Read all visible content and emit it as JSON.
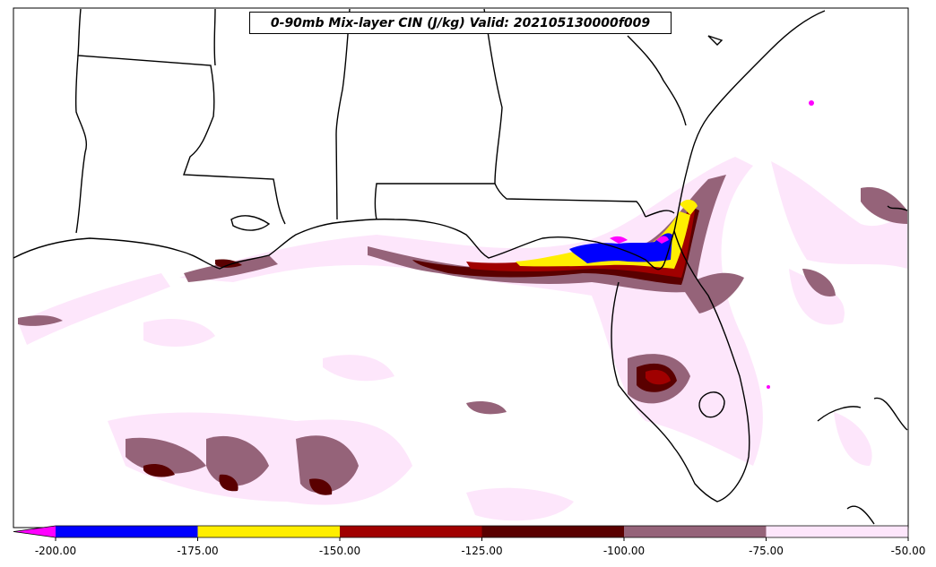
{
  "title": "0-90mb Mix-layer CIN (J/kg) Valid: 202105130000f009",
  "colorbar": {
    "ticks": [
      "-200.00",
      "-175.00",
      "-150.00",
      "-125.00",
      "-100.00",
      "-75.00",
      "-50.00"
    ],
    "bins": [
      {
        "from": -225,
        "to": -200,
        "color": "#ff00ff",
        "extend": true
      },
      {
        "from": -200,
        "to": -175,
        "color": "#0000ff"
      },
      {
        "from": -175,
        "to": -150,
        "color": "#ffee00"
      },
      {
        "from": -150,
        "to": -125,
        "color": "#a00000"
      },
      {
        "from": -125,
        "to": -100,
        "color": "#5a0000"
      },
      {
        "from": -100,
        "to": -75,
        "color": "#956379"
      },
      {
        "from": -75,
        "to": -50,
        "color": "#fde6fb"
      }
    ]
  }
}
